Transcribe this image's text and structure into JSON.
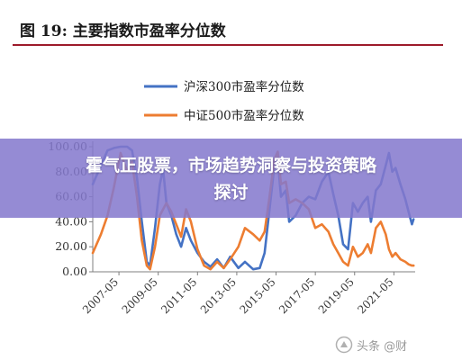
{
  "figure_title": "图 19:  主要指数市盈率分位数",
  "overlay": {
    "line1": "霍气正股票，市场趋势洞察与投资策略",
    "line2": "探讨"
  },
  "watermark": "头条 @财",
  "colors": {
    "series_hs300": "#4472c4",
    "series_zz500": "#ed7d31",
    "accent_rule": "#9d1b2a",
    "overlay": "#8478cd"
  },
  "chart_data": {
    "type": "line",
    "title": "",
    "xlabel": "",
    "ylabel": "",
    "ylim": [
      0,
      100
    ],
    "xlim": [
      "2006-01",
      "2022-06"
    ],
    "y_ticks": [
      "0.00",
      "20.00",
      "40.00",
      "60.00",
      "80.00",
      "100.00"
    ],
    "x_ticks": [
      "2007-05",
      "2009-05",
      "2011-05",
      "2013-05",
      "2015-05",
      "2017-05",
      "2019-05",
      "2021-05"
    ],
    "legend_position": "top-center",
    "grid": false,
    "series": [
      {
        "name": "沪深300市盈率分位数",
        "points": [
          [
            "2006-01",
            70
          ],
          [
            "2006-06",
            85
          ],
          [
            "2006-10",
            97
          ],
          [
            "2007-02",
            99
          ],
          [
            "2007-06",
            100
          ],
          [
            "2007-10",
            100
          ],
          [
            "2008-01",
            97
          ],
          [
            "2008-04",
            75
          ],
          [
            "2008-07",
            40
          ],
          [
            "2008-10",
            8
          ],
          [
            "2008-12",
            5
          ],
          [
            "2009-03",
            35
          ],
          [
            "2009-06",
            70
          ],
          [
            "2009-08",
            82
          ],
          [
            "2009-10",
            55
          ],
          [
            "2010-01",
            45
          ],
          [
            "2010-04",
            30
          ],
          [
            "2010-07",
            20
          ],
          [
            "2010-10",
            35
          ],
          [
            "2011-01",
            25
          ],
          [
            "2011-05",
            15
          ],
          [
            "2011-09",
            8
          ],
          [
            "2012-01",
            4
          ],
          [
            "2012-05",
            10
          ],
          [
            "2012-09",
            3
          ],
          [
            "2013-01",
            12
          ],
          [
            "2013-06",
            3
          ],
          [
            "2013-10",
            8
          ],
          [
            "2014-03",
            2
          ],
          [
            "2014-07",
            3
          ],
          [
            "2014-10",
            15
          ],
          [
            "2015-01",
            50
          ],
          [
            "2015-04",
            85
          ],
          [
            "2015-06",
            90
          ],
          [
            "2015-08",
            60
          ],
          [
            "2015-11",
            65
          ],
          [
            "2016-01",
            40
          ],
          [
            "2016-05",
            45
          ],
          [
            "2016-09",
            55
          ],
          [
            "2017-01",
            60
          ],
          [
            "2017-05",
            58
          ],
          [
            "2017-09",
            72
          ],
          [
            "2018-01",
            80
          ],
          [
            "2018-04",
            62
          ],
          [
            "2018-07",
            45
          ],
          [
            "2018-10",
            22
          ],
          [
            "2019-01",
            18
          ],
          [
            "2019-04",
            55
          ],
          [
            "2019-07",
            48
          ],
          [
            "2019-10",
            55
          ],
          [
            "2020-01",
            60
          ],
          [
            "2020-03",
            40
          ],
          [
            "2020-06",
            65
          ],
          [
            "2020-09",
            70
          ],
          [
            "2020-12",
            85
          ],
          [
            "2021-02",
            95
          ],
          [
            "2021-04",
            80
          ],
          [
            "2021-06",
            83
          ],
          [
            "2021-09",
            70
          ],
          [
            "2021-12",
            58
          ],
          [
            "2022-02",
            48
          ],
          [
            "2022-04",
            38
          ],
          [
            "2022-05",
            42
          ]
        ]
      },
      {
        "name": "中证500市盈率分位数",
        "points": [
          [
            "2006-01",
            15
          ],
          [
            "2006-06",
            30
          ],
          [
            "2006-10",
            45
          ],
          [
            "2007-02",
            68
          ],
          [
            "2007-06",
            95
          ],
          [
            "2007-10",
            80
          ],
          [
            "2008-01",
            88
          ],
          [
            "2008-04",
            60
          ],
          [
            "2008-07",
            25
          ],
          [
            "2008-10",
            5
          ],
          [
            "2008-12",
            2
          ],
          [
            "2009-03",
            20
          ],
          [
            "2009-06",
            45
          ],
          [
            "2009-08",
            50
          ],
          [
            "2009-10",
            55
          ],
          [
            "2010-01",
            48
          ],
          [
            "2010-04",
            38
          ],
          [
            "2010-07",
            28
          ],
          [
            "2010-10",
            50
          ],
          [
            "2011-01",
            40
          ],
          [
            "2011-05",
            18
          ],
          [
            "2011-09",
            5
          ],
          [
            "2012-01",
            2
          ],
          [
            "2012-05",
            8
          ],
          [
            "2012-09",
            3
          ],
          [
            "2013-01",
            10
          ],
          [
            "2013-06",
            20
          ],
          [
            "2013-10",
            35
          ],
          [
            "2014-03",
            30
          ],
          [
            "2014-07",
            25
          ],
          [
            "2014-10",
            32
          ],
          [
            "2015-01",
            60
          ],
          [
            "2015-04",
            90
          ],
          [
            "2015-06",
            96
          ],
          [
            "2015-08",
            70
          ],
          [
            "2015-11",
            72
          ],
          [
            "2016-01",
            55
          ],
          [
            "2016-05",
            58
          ],
          [
            "2016-09",
            55
          ],
          [
            "2017-01",
            50
          ],
          [
            "2017-05",
            35
          ],
          [
            "2017-09",
            38
          ],
          [
            "2018-01",
            32
          ],
          [
            "2018-04",
            22
          ],
          [
            "2018-07",
            15
          ],
          [
            "2018-10",
            8
          ],
          [
            "2019-01",
            5
          ],
          [
            "2019-04",
            20
          ],
          [
            "2019-07",
            12
          ],
          [
            "2019-10",
            15
          ],
          [
            "2020-01",
            22
          ],
          [
            "2020-03",
            15
          ],
          [
            "2020-06",
            35
          ],
          [
            "2020-09",
            40
          ],
          [
            "2020-12",
            30
          ],
          [
            "2021-02",
            18
          ],
          [
            "2021-04",
            12
          ],
          [
            "2021-06",
            15
          ],
          [
            "2021-09",
            10
          ],
          [
            "2021-12",
            8
          ],
          [
            "2022-02",
            6
          ],
          [
            "2022-04",
            5
          ],
          [
            "2022-05",
            5
          ]
        ]
      }
    ]
  }
}
